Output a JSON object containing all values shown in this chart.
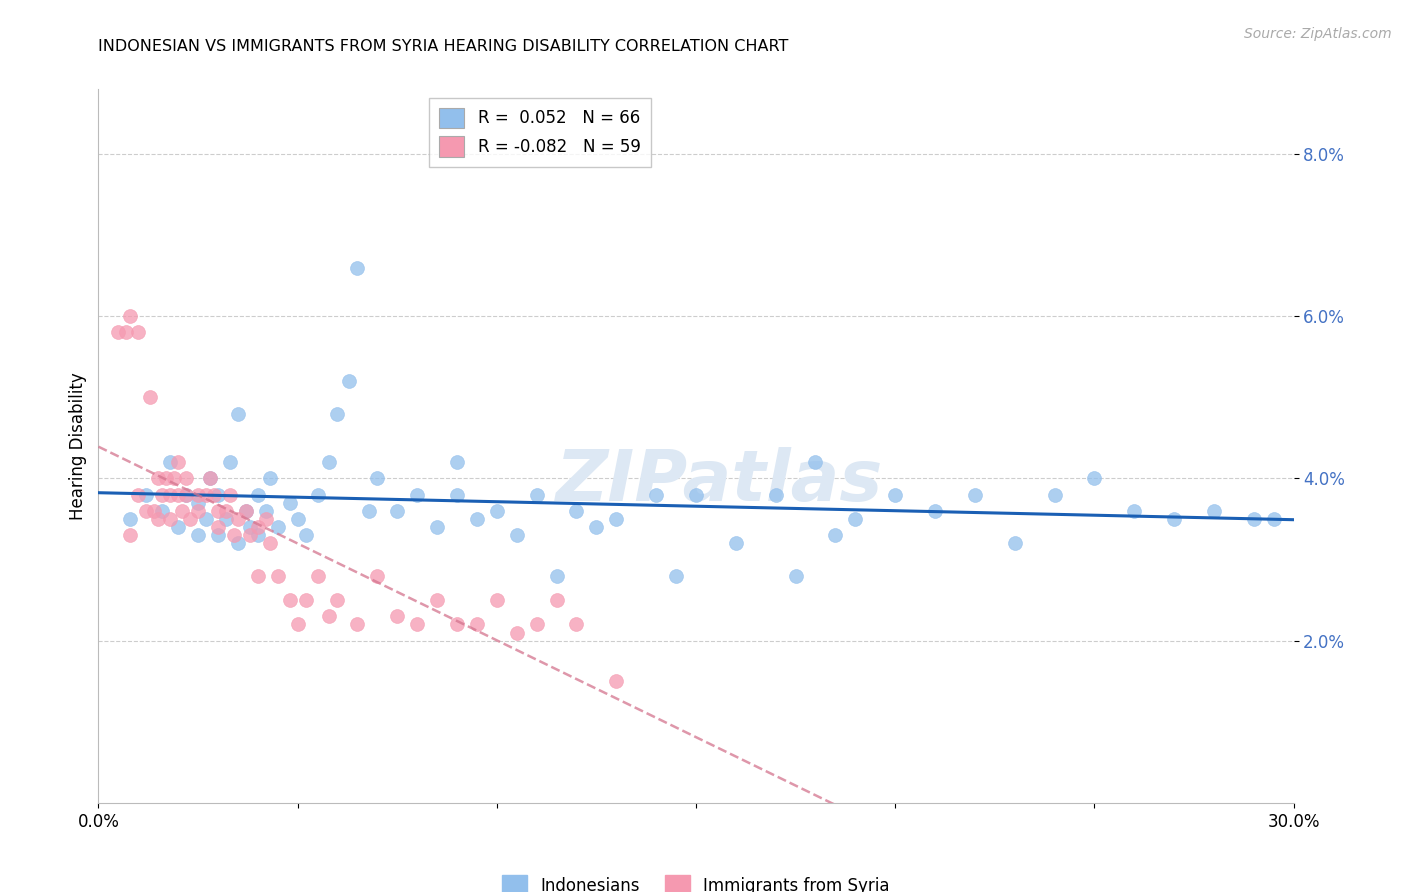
{
  "title": "INDONESIAN VS IMMIGRANTS FROM SYRIA HEARING DISABILITY CORRELATION CHART",
  "source": "Source: ZipAtlas.com",
  "ylabel": "Hearing Disability",
  "xlim": [
    0.0,
    0.3
  ],
  "ylim": [
    0.0,
    0.088
  ],
  "yticks": [
    0.02,
    0.04,
    0.06,
    0.08
  ],
  "ytick_labels": [
    "2.0%",
    "4.0%",
    "6.0%",
    "8.0%"
  ],
  "xticks": [
    0.0,
    0.05,
    0.1,
    0.15,
    0.2,
    0.25,
    0.3
  ],
  "xtick_labels": [
    "0.0%",
    "",
    "",
    "",
    "",
    "",
    "30.0%"
  ],
  "legend_R1": "R =  0.052   N = 66",
  "legend_R2": "R = -0.082   N = 59",
  "color_indonesian": "#92bfec",
  "color_syrian": "#f599b0",
  "color_line_indonesian": "#1a5fb4",
  "color_line_syrian": "#d4748e",
  "indonesian_x": [
    0.008,
    0.012,
    0.016,
    0.018,
    0.02,
    0.022,
    0.025,
    0.025,
    0.027,
    0.028,
    0.03,
    0.03,
    0.032,
    0.033,
    0.035,
    0.035,
    0.037,
    0.038,
    0.04,
    0.04,
    0.042,
    0.043,
    0.045,
    0.048,
    0.05,
    0.052,
    0.055,
    0.058,
    0.06,
    0.063,
    0.065,
    0.068,
    0.07,
    0.075,
    0.08,
    0.085,
    0.09,
    0.09,
    0.095,
    0.1,
    0.105,
    0.11,
    0.115,
    0.12,
    0.125,
    0.13,
    0.14,
    0.145,
    0.15,
    0.16,
    0.17,
    0.175,
    0.18,
    0.185,
    0.19,
    0.2,
    0.21,
    0.22,
    0.23,
    0.24,
    0.25,
    0.26,
    0.27,
    0.28,
    0.29,
    0.295
  ],
  "indonesian_y": [
    0.035,
    0.038,
    0.036,
    0.042,
    0.034,
    0.038,
    0.033,
    0.037,
    0.035,
    0.04,
    0.033,
    0.038,
    0.035,
    0.042,
    0.032,
    0.048,
    0.036,
    0.034,
    0.033,
    0.038,
    0.036,
    0.04,
    0.034,
    0.037,
    0.035,
    0.033,
    0.038,
    0.042,
    0.048,
    0.052,
    0.066,
    0.036,
    0.04,
    0.036,
    0.038,
    0.034,
    0.038,
    0.042,
    0.035,
    0.036,
    0.033,
    0.038,
    0.028,
    0.036,
    0.034,
    0.035,
    0.038,
    0.028,
    0.038,
    0.032,
    0.038,
    0.028,
    0.042,
    0.033,
    0.035,
    0.038,
    0.036,
    0.038,
    0.032,
    0.038,
    0.04,
    0.036,
    0.035,
    0.036,
    0.035,
    0.035
  ],
  "syrian_x": [
    0.005,
    0.007,
    0.008,
    0.008,
    0.01,
    0.01,
    0.012,
    0.013,
    0.014,
    0.015,
    0.015,
    0.016,
    0.017,
    0.018,
    0.018,
    0.019,
    0.02,
    0.02,
    0.021,
    0.022,
    0.022,
    0.023,
    0.025,
    0.025,
    0.027,
    0.028,
    0.029,
    0.03,
    0.03,
    0.032,
    0.033,
    0.034,
    0.035,
    0.037,
    0.038,
    0.04,
    0.04,
    0.042,
    0.043,
    0.045,
    0.048,
    0.05,
    0.052,
    0.055,
    0.058,
    0.06,
    0.065,
    0.07,
    0.075,
    0.08,
    0.085,
    0.09,
    0.095,
    0.1,
    0.105,
    0.11,
    0.115,
    0.12,
    0.13
  ],
  "syrian_y": [
    0.058,
    0.058,
    0.033,
    0.06,
    0.038,
    0.058,
    0.036,
    0.05,
    0.036,
    0.04,
    0.035,
    0.038,
    0.04,
    0.038,
    0.035,
    0.04,
    0.038,
    0.042,
    0.036,
    0.04,
    0.038,
    0.035,
    0.038,
    0.036,
    0.038,
    0.04,
    0.038,
    0.036,
    0.034,
    0.036,
    0.038,
    0.033,
    0.035,
    0.036,
    0.033,
    0.034,
    0.028,
    0.035,
    0.032,
    0.028,
    0.025,
    0.022,
    0.025,
    0.028,
    0.023,
    0.025,
    0.022,
    0.028,
    0.023,
    0.022,
    0.025,
    0.022,
    0.022,
    0.025,
    0.021,
    0.022,
    0.025,
    0.022,
    0.015
  ]
}
